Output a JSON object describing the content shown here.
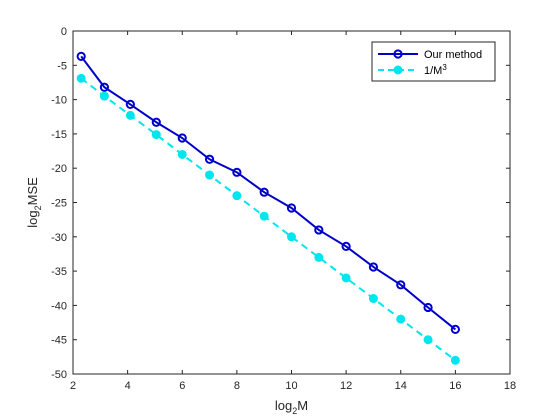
{
  "chart_data": {
    "type": "line",
    "xlabel": {
      "base": "log",
      "sub": "2",
      "rest": "M"
    },
    "ylabel": {
      "base": "log",
      "sub": "2",
      "rest": "MSE"
    },
    "xlim": [
      2,
      18
    ],
    "ylim": [
      -50,
      0
    ],
    "xticks": [
      2,
      4,
      6,
      8,
      10,
      12,
      14,
      16,
      18
    ],
    "yticks": [
      0,
      -5,
      -10,
      -15,
      -20,
      -25,
      -30,
      -35,
      -40,
      -45,
      -50
    ],
    "grid": false,
    "legend_position": "top-right",
    "series": [
      {
        "name": "Our method",
        "color": "#0000CC",
        "line_style": "solid",
        "marker": "open-circle",
        "x": [
          2.3,
          3.15,
          4.1,
          5.05,
          6.0,
          7.0,
          8.0,
          9.0,
          10.0,
          11.0,
          12.0,
          13.0,
          14.0,
          15.0,
          16.0
        ],
        "y": [
          -3.7,
          -8.2,
          -10.7,
          -13.3,
          -15.6,
          -18.7,
          -20.6,
          -23.5,
          -25.8,
          -29.0,
          -31.4,
          -34.4,
          -37.0,
          -40.3,
          -43.5
        ]
      },
      {
        "name": "1/M",
        "name_sup": "3",
        "color": "#00E5EE",
        "line_style": "dashed",
        "marker": "filled-circle",
        "x": [
          2.3,
          3.15,
          4.1,
          5.05,
          6.0,
          7.0,
          8.0,
          9.0,
          10.0,
          11.0,
          12.0,
          13.0,
          14.0,
          15.0,
          16.0
        ],
        "y": [
          -6.9,
          -9.5,
          -12.3,
          -15.1,
          -18.0,
          -21.0,
          -24.0,
          -27.0,
          -30.0,
          -33.0,
          -36.0,
          -39.0,
          -42.0,
          -45.0,
          -48.0
        ]
      }
    ]
  }
}
